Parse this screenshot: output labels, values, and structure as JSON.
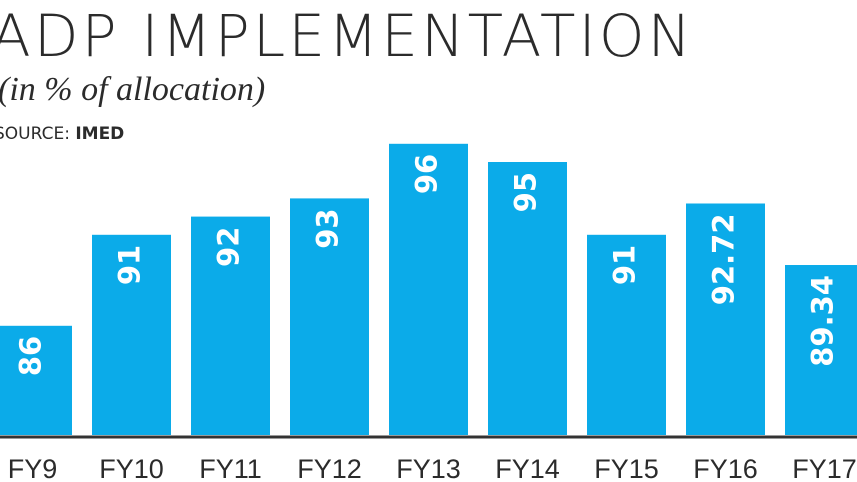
{
  "chart_data": {
    "type": "bar",
    "title": "ADP IMPLEMENTATION",
    "subtitle": "(in % of allocation)",
    "source_label": "SOURCE:",
    "source": "IMED",
    "categories": [
      "FY9",
      "FY10",
      "FY11",
      "FY12",
      "FY13",
      "FY14",
      "FY15",
      "FY16",
      "FY17"
    ],
    "values": [
      86,
      91,
      92,
      93,
      96,
      95,
      91,
      92.72,
      89.34
    ],
    "color": "#0babe9",
    "ylim": [
      80,
      100
    ]
  }
}
